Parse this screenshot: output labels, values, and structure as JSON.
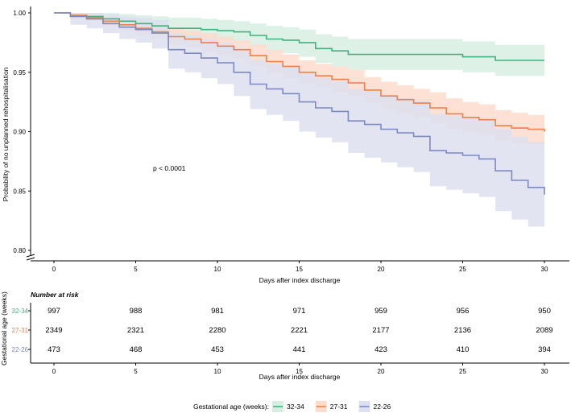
{
  "chart_data": {
    "type": "line",
    "subtype": "kaplan-meier",
    "ylabel": "Probability of no unplanned rehospitalisation",
    "xlabel": "Days after index discharge",
    "xlim": [
      -1.5,
      31.5
    ],
    "ylim": [
      0.8,
      1.0
    ],
    "axis_break": "y-bottom",
    "x_ticks": [
      0,
      5,
      10,
      15,
      20,
      25,
      30
    ],
    "y_ticks": [
      0.8,
      0.85,
      0.9,
      0.95,
      1.0
    ],
    "y_tick_labels": [
      "0.80",
      "0.85",
      "0.90",
      "0.95",
      "1.00"
    ],
    "annotation": "p < 0.0001",
    "legend": {
      "title": "Gestational age (weeks):",
      "position": "bottom"
    },
    "series": [
      {
        "name": "32-34",
        "color": "#43b17e",
        "band_color": "#d7efe3",
        "steps": [
          [
            0,
            1.0
          ],
          [
            1,
            0.998
          ],
          [
            2,
            0.997
          ],
          [
            3,
            0.995
          ],
          [
            4,
            0.993
          ],
          [
            5,
            0.991
          ],
          [
            6,
            0.989
          ],
          [
            7,
            0.987
          ],
          [
            9,
            0.986
          ],
          [
            10,
            0.985
          ],
          [
            11,
            0.984
          ],
          [
            12,
            0.981
          ],
          [
            13,
            0.978
          ],
          [
            14,
            0.977
          ],
          [
            15,
            0.975
          ],
          [
            16,
            0.97
          ],
          [
            17,
            0.968
          ],
          [
            18,
            0.965
          ],
          [
            25,
            0.963
          ],
          [
            27,
            0.96
          ],
          [
            30,
            0.96
          ]
        ],
        "upper": [
          [
            0,
            1.0
          ],
          [
            1,
            1.0
          ],
          [
            2,
            1.0
          ],
          [
            3,
            1.0
          ],
          [
            4,
            0.999
          ],
          [
            5,
            0.998
          ],
          [
            6,
            0.997
          ],
          [
            7,
            0.996
          ],
          [
            9,
            0.995
          ],
          [
            10,
            0.994
          ],
          [
            11,
            0.993
          ],
          [
            12,
            0.991
          ],
          [
            13,
            0.989
          ],
          [
            14,
            0.988
          ],
          [
            15,
            0.986
          ],
          [
            16,
            0.982
          ],
          [
            17,
            0.98
          ],
          [
            18,
            0.978
          ],
          [
            25,
            0.976
          ],
          [
            27,
            0.973
          ],
          [
            30,
            0.973
          ]
        ],
        "lower": [
          [
            0,
            1.0
          ],
          [
            1,
            0.995
          ],
          [
            2,
            0.993
          ],
          [
            3,
            0.99
          ],
          [
            4,
            0.987
          ],
          [
            5,
            0.984
          ],
          [
            6,
            0.981
          ],
          [
            7,
            0.978
          ],
          [
            9,
            0.977
          ],
          [
            10,
            0.976
          ],
          [
            11,
            0.974
          ],
          [
            12,
            0.971
          ],
          [
            13,
            0.967
          ],
          [
            14,
            0.966
          ],
          [
            15,
            0.963
          ],
          [
            16,
            0.958
          ],
          [
            17,
            0.955
          ],
          [
            18,
            0.952
          ],
          [
            25,
            0.95
          ],
          [
            27,
            0.947
          ],
          [
            30,
            0.947
          ]
        ]
      },
      {
        "name": "27-31",
        "color": "#ef7f4c",
        "band_color": "#fddccd",
        "steps": [
          [
            0,
            1.0
          ],
          [
            1,
            0.998
          ],
          [
            2,
            0.996
          ],
          [
            3,
            0.993
          ],
          [
            4,
            0.99
          ],
          [
            5,
            0.987
          ],
          [
            6,
            0.984
          ],
          [
            7,
            0.98
          ],
          [
            8,
            0.978
          ],
          [
            9,
            0.975
          ],
          [
            10,
            0.972
          ],
          [
            11,
            0.969
          ],
          [
            12,
            0.964
          ],
          [
            13,
            0.959
          ],
          [
            14,
            0.955
          ],
          [
            15,
            0.95
          ],
          [
            16,
            0.947
          ],
          [
            17,
            0.944
          ],
          [
            18,
            0.941
          ],
          [
            19,
            0.935
          ],
          [
            20,
            0.93
          ],
          [
            21,
            0.927
          ],
          [
            22,
            0.924
          ],
          [
            23,
            0.92
          ],
          [
            24,
            0.915
          ],
          [
            25,
            0.912
          ],
          [
            26,
            0.91
          ],
          [
            27,
            0.905
          ],
          [
            28,
            0.903
          ],
          [
            29,
            0.902
          ],
          [
            30,
            0.9
          ]
        ],
        "upper": [
          [
            0,
            1.0
          ],
          [
            1,
            1.0
          ],
          [
            2,
            0.999
          ],
          [
            3,
            0.997
          ],
          [
            4,
            0.995
          ],
          [
            5,
            0.993
          ],
          [
            6,
            0.99
          ],
          [
            7,
            0.987
          ],
          [
            8,
            0.985
          ],
          [
            9,
            0.983
          ],
          [
            10,
            0.98
          ],
          [
            11,
            0.977
          ],
          [
            12,
            0.973
          ],
          [
            13,
            0.969
          ],
          [
            14,
            0.965
          ],
          [
            15,
            0.96
          ],
          [
            16,
            0.957
          ],
          [
            17,
            0.955
          ],
          [
            18,
            0.952
          ],
          [
            19,
            0.946
          ],
          [
            20,
            0.942
          ],
          [
            21,
            0.939
          ],
          [
            22,
            0.936
          ],
          [
            23,
            0.933
          ],
          [
            24,
            0.928
          ],
          [
            25,
            0.925
          ],
          [
            26,
            0.923
          ],
          [
            27,
            0.918
          ],
          [
            28,
            0.916
          ],
          [
            29,
            0.914
          ],
          [
            30,
            0.912
          ]
        ],
        "lower": [
          [
            0,
            1.0
          ],
          [
            1,
            0.996
          ],
          [
            2,
            0.993
          ],
          [
            3,
            0.989
          ],
          [
            4,
            0.985
          ],
          [
            5,
            0.981
          ],
          [
            6,
            0.978
          ],
          [
            7,
            0.973
          ],
          [
            8,
            0.971
          ],
          [
            9,
            0.967
          ],
          [
            10,
            0.964
          ],
          [
            11,
            0.961
          ],
          [
            12,
            0.955
          ],
          [
            13,
            0.949
          ],
          [
            14,
            0.945
          ],
          [
            15,
            0.94
          ],
          [
            16,
            0.937
          ],
          [
            17,
            0.933
          ],
          [
            18,
            0.93
          ],
          [
            19,
            0.924
          ],
          [
            20,
            0.918
          ],
          [
            21,
            0.915
          ],
          [
            22,
            0.912
          ],
          [
            23,
            0.907
          ],
          [
            24,
            0.902
          ],
          [
            25,
            0.899
          ],
          [
            26,
            0.897
          ],
          [
            27,
            0.892
          ],
          [
            28,
            0.89
          ],
          [
            29,
            0.889
          ],
          [
            30,
            0.887
          ]
        ]
      },
      {
        "name": "22-26",
        "color": "#7d89c2",
        "band_color": "#dde1ef",
        "steps": [
          [
            0,
            1.0
          ],
          [
            1,
            0.997
          ],
          [
            2,
            0.995
          ],
          [
            3,
            0.991
          ],
          [
            4,
            0.988
          ],
          [
            5,
            0.986
          ],
          [
            6,
            0.983
          ],
          [
            7,
            0.969
          ],
          [
            8,
            0.966
          ],
          [
            9,
            0.962
          ],
          [
            10,
            0.958
          ],
          [
            11,
            0.95
          ],
          [
            12,
            0.94
          ],
          [
            13,
            0.936
          ],
          [
            14,
            0.932
          ],
          [
            15,
            0.925
          ],
          [
            16,
            0.92
          ],
          [
            17,
            0.917
          ],
          [
            18,
            0.909
          ],
          [
            19,
            0.906
          ],
          [
            20,
            0.902
          ],
          [
            21,
            0.899
          ],
          [
            22,
            0.896
          ],
          [
            23,
            0.884
          ],
          [
            24,
            0.882
          ],
          [
            25,
            0.88
          ],
          [
            26,
            0.877
          ],
          [
            27,
            0.867
          ],
          [
            28,
            0.859
          ],
          [
            29,
            0.853
          ],
          [
            30,
            0.847
          ]
        ],
        "upper": [
          [
            0,
            1.0
          ],
          [
            1,
            1.0
          ],
          [
            2,
            1.0
          ],
          [
            3,
            0.999
          ],
          [
            4,
            0.997
          ],
          [
            5,
            0.996
          ],
          [
            6,
            0.994
          ],
          [
            7,
            0.983
          ],
          [
            8,
            0.981
          ],
          [
            9,
            0.978
          ],
          [
            10,
            0.975
          ],
          [
            11,
            0.969
          ],
          [
            12,
            0.96
          ],
          [
            13,
            0.957
          ],
          [
            14,
            0.954
          ],
          [
            15,
            0.949
          ],
          [
            16,
            0.945
          ],
          [
            17,
            0.942
          ],
          [
            18,
            0.936
          ],
          [
            19,
            0.934
          ],
          [
            20,
            0.93
          ],
          [
            21,
            0.928
          ],
          [
            22,
            0.926
          ],
          [
            23,
            0.915
          ],
          [
            24,
            0.913
          ],
          [
            25,
            0.912
          ],
          [
            26,
            0.91
          ],
          [
            27,
            0.902
          ],
          [
            28,
            0.896
          ],
          [
            29,
            0.891
          ],
          [
            30,
            0.885
          ]
        ],
        "lower": [
          [
            0,
            1.0
          ],
          [
            1,
            0.99
          ],
          [
            2,
            0.987
          ],
          [
            3,
            0.983
          ],
          [
            4,
            0.978
          ],
          [
            5,
            0.975
          ],
          [
            6,
            0.97
          ],
          [
            7,
            0.953
          ],
          [
            8,
            0.95
          ],
          [
            9,
            0.945
          ],
          [
            10,
            0.94
          ],
          [
            11,
            0.93
          ],
          [
            12,
            0.919
          ],
          [
            13,
            0.914
          ],
          [
            14,
            0.909
          ],
          [
            15,
            0.9
          ],
          [
            16,
            0.895
          ],
          [
            17,
            0.891
          ],
          [
            18,
            0.882
          ],
          [
            19,
            0.878
          ],
          [
            20,
            0.874
          ],
          [
            21,
            0.87
          ],
          [
            22,
            0.866
          ],
          [
            23,
            0.854
          ],
          [
            24,
            0.851
          ],
          [
            25,
            0.848
          ],
          [
            26,
            0.845
          ],
          [
            27,
            0.833
          ],
          [
            28,
            0.826
          ],
          [
            29,
            0.82
          ],
          [
            30,
            0.814
          ]
        ]
      }
    ],
    "risk_table": {
      "title": "Number at risk",
      "ylabel": "Gestational age (weeks)",
      "xlabel": "Days after index discharge",
      "times": [
        0,
        5,
        10,
        15,
        20,
        25,
        30
      ],
      "rows": [
        {
          "group": "32-34",
          "color": "#43b17e",
          "counts": [
            "997",
            "988",
            "981",
            "971",
            "959",
            "956",
            "950"
          ]
        },
        {
          "group": "27-31",
          "color": "#ef7f4c",
          "counts": [
            "2349",
            "2321",
            "2280",
            "2221",
            "2177",
            "2136",
            "2089"
          ]
        },
        {
          "group": "22-26",
          "color": "#7d89c2",
          "counts": [
            "473",
            "468",
            "453",
            "441",
            "423",
            "410",
            "394"
          ]
        }
      ]
    }
  }
}
